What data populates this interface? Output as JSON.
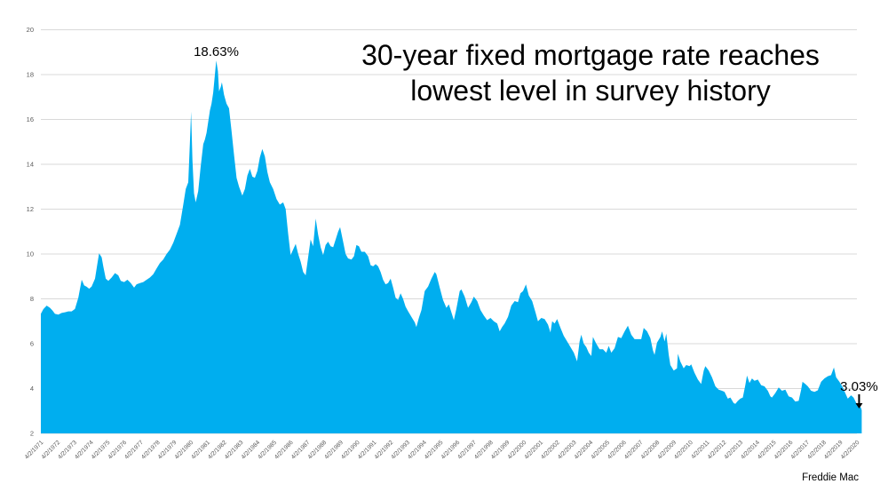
{
  "title": {
    "line1": "30-year fixed mortgage rate reaches",
    "line2": "lowest level in survey history"
  },
  "annotations": {
    "peak_label": "18.63%",
    "latest_label": "3.03%",
    "source_label": "Freddie Mac"
  },
  "colors": {
    "area": "#00AEEF",
    "gridline": "#D9D9D9",
    "axis_text": "#595959",
    "title_text": "#000000",
    "annotation_text": "#000000"
  },
  "chart_data": {
    "type": "area",
    "title": "30-year fixed mortgage rate reaches lowest level in survey history",
    "series_name": "30-year fixed mortgage rate (%)",
    "source": "Freddie Mac",
    "grid": "horizontal",
    "legend": "none",
    "ylim": [
      2,
      20
    ],
    "y_ticks": [
      2,
      4,
      6,
      8,
      10,
      12,
      14,
      16,
      18,
      20
    ],
    "xlim_years": [
      1971.25,
      2020.25
    ],
    "x_tick_labels": [
      "4/2/1971",
      "4/2/1972",
      "4/2/1973",
      "4/2/1974",
      "4/2/1975",
      "4/2/1976",
      "4/2/1977",
      "4/2/1978",
      "4/2/1979",
      "4/2/1980",
      "4/2/1981",
      "4/2/1982",
      "4/2/1983",
      "4/2/1984",
      "4/2/1985",
      "4/2/1986",
      "4/2/1987",
      "4/2/1988",
      "4/2/1989",
      "4/2/1990",
      "4/2/1991",
      "4/2/1992",
      "4/2/1993",
      "4/2/1994",
      "4/2/1995",
      "4/2/1996",
      "4/2/1997",
      "4/2/1998",
      "4/2/1999",
      "4/2/2000",
      "4/2/2001",
      "4/2/2002",
      "4/2/2003",
      "4/2/2004",
      "4/2/2005",
      "4/2/2006",
      "4/2/2007",
      "4/2/2008",
      "4/2/2009",
      "4/2/2010",
      "4/2/2011",
      "4/2/2012",
      "4/2/2013",
      "4/2/2014",
      "4/2/2015",
      "4/2/2016",
      "4/2/2017",
      "4/2/2018",
      "4/2/2019",
      "4/2/2020"
    ],
    "peak": {
      "year": 1981.78,
      "value": 18.63,
      "label": "18.63%"
    },
    "latest": {
      "year": 2020.54,
      "value": 3.03,
      "label": "3.03%"
    },
    "points": [
      [
        1971.25,
        7.33
      ],
      [
        1971.4,
        7.54
      ],
      [
        1971.6,
        7.7
      ],
      [
        1971.8,
        7.6
      ],
      [
        1971.95,
        7.48
      ],
      [
        1972.1,
        7.33
      ],
      [
        1972.3,
        7.3
      ],
      [
        1972.5,
        7.37
      ],
      [
        1972.7,
        7.4
      ],
      [
        1972.9,
        7.44
      ],
      [
        1973.1,
        7.44
      ],
      [
        1973.3,
        7.55
      ],
      [
        1973.5,
        8.05
      ],
      [
        1973.7,
        8.85
      ],
      [
        1973.85,
        8.6
      ],
      [
        1974.0,
        8.54
      ],
      [
        1974.15,
        8.45
      ],
      [
        1974.3,
        8.55
      ],
      [
        1974.5,
        8.9
      ],
      [
        1974.65,
        9.6
      ],
      [
        1974.75,
        10.03
      ],
      [
        1974.9,
        9.85
      ],
      [
        1975.0,
        9.45
      ],
      [
        1975.15,
        8.9
      ],
      [
        1975.3,
        8.8
      ],
      [
        1975.5,
        8.95
      ],
      [
        1975.7,
        9.15
      ],
      [
        1975.9,
        9.05
      ],
      [
        1976.05,
        8.8
      ],
      [
        1976.25,
        8.75
      ],
      [
        1976.45,
        8.85
      ],
      [
        1976.65,
        8.7
      ],
      [
        1976.85,
        8.5
      ],
      [
        1977.0,
        8.65
      ],
      [
        1977.2,
        8.7
      ],
      [
        1977.4,
        8.75
      ],
      [
        1977.6,
        8.85
      ],
      [
        1977.8,
        8.95
      ],
      [
        1978.0,
        9.1
      ],
      [
        1978.2,
        9.35
      ],
      [
        1978.4,
        9.6
      ],
      [
        1978.6,
        9.75
      ],
      [
        1978.8,
        10.0
      ],
      [
        1979.0,
        10.2
      ],
      [
        1979.2,
        10.5
      ],
      [
        1979.4,
        10.9
      ],
      [
        1979.6,
        11.3
      ],
      [
        1979.8,
        12.2
      ],
      [
        1979.95,
        12.9
      ],
      [
        1980.1,
        13.2
      ],
      [
        1980.2,
        15.0
      ],
      [
        1980.27,
        16.35
      ],
      [
        1980.35,
        14.2
      ],
      [
        1980.45,
        12.7
      ],
      [
        1980.55,
        12.3
      ],
      [
        1980.7,
        12.8
      ],
      [
        1980.85,
        13.9
      ],
      [
        1981.0,
        14.9
      ],
      [
        1981.1,
        15.1
      ],
      [
        1981.2,
        15.4
      ],
      [
        1981.3,
        15.9
      ],
      [
        1981.4,
        16.4
      ],
      [
        1981.5,
        16.7
      ],
      [
        1981.6,
        17.2
      ],
      [
        1981.7,
        18.0
      ],
      [
        1981.78,
        18.63
      ],
      [
        1981.88,
        18.15
      ],
      [
        1981.95,
        17.25
      ],
      [
        1982.05,
        17.45
      ],
      [
        1982.12,
        17.66
      ],
      [
        1982.25,
        17.1
      ],
      [
        1982.4,
        16.7
      ],
      [
        1982.55,
        16.5
      ],
      [
        1982.7,
        15.5
      ],
      [
        1982.85,
        14.4
      ],
      [
        1983.0,
        13.4
      ],
      [
        1983.15,
        13.0
      ],
      [
        1983.35,
        12.6
      ],
      [
        1983.5,
        12.9
      ],
      [
        1983.65,
        13.5
      ],
      [
        1983.8,
        13.8
      ],
      [
        1983.95,
        13.45
      ],
      [
        1984.1,
        13.4
      ],
      [
        1984.25,
        13.7
      ],
      [
        1984.4,
        14.3
      ],
      [
        1984.55,
        14.68
      ],
      [
        1984.7,
        14.35
      ],
      [
        1984.85,
        13.65
      ],
      [
        1985.0,
        13.2
      ],
      [
        1985.2,
        12.9
      ],
      [
        1985.4,
        12.45
      ],
      [
        1985.6,
        12.2
      ],
      [
        1985.8,
        12.3
      ],
      [
        1985.95,
        12.0
      ],
      [
        1986.1,
        10.9
      ],
      [
        1986.25,
        9.95
      ],
      [
        1986.4,
        10.2
      ],
      [
        1986.55,
        10.45
      ],
      [
        1986.7,
        10.0
      ],
      [
        1986.85,
        9.65
      ],
      [
        1987.0,
        9.2
      ],
      [
        1987.15,
        9.05
      ],
      [
        1987.3,
        9.85
      ],
      [
        1987.45,
        10.65
      ],
      [
        1987.6,
        10.35
      ],
      [
        1987.75,
        11.58
      ],
      [
        1987.9,
        10.85
      ],
      [
        1988.05,
        10.3
      ],
      [
        1988.2,
        9.95
      ],
      [
        1988.35,
        10.4
      ],
      [
        1988.5,
        10.55
      ],
      [
        1988.65,
        10.35
      ],
      [
        1988.8,
        10.3
      ],
      [
        1988.95,
        10.65
      ],
      [
        1989.1,
        11.0
      ],
      [
        1989.22,
        11.2
      ],
      [
        1989.4,
        10.55
      ],
      [
        1989.55,
        10.0
      ],
      [
        1989.7,
        9.8
      ],
      [
        1989.9,
        9.75
      ],
      [
        1990.05,
        9.9
      ],
      [
        1990.2,
        10.4
      ],
      [
        1990.35,
        10.35
      ],
      [
        1990.5,
        10.1
      ],
      [
        1990.7,
        10.1
      ],
      [
        1990.9,
        9.9
      ],
      [
        1991.05,
        9.5
      ],
      [
        1991.2,
        9.45
      ],
      [
        1991.35,
        9.55
      ],
      [
        1991.5,
        9.45
      ],
      [
        1991.65,
        9.2
      ],
      [
        1991.8,
        8.85
      ],
      [
        1991.95,
        8.65
      ],
      [
        1992.1,
        8.7
      ],
      [
        1992.25,
        8.9
      ],
      [
        1992.4,
        8.5
      ],
      [
        1992.55,
        8.05
      ],
      [
        1992.7,
        7.95
      ],
      [
        1992.85,
        8.25
      ],
      [
        1993.0,
        8.0
      ],
      [
        1993.15,
        7.65
      ],
      [
        1993.3,
        7.45
      ],
      [
        1993.5,
        7.2
      ],
      [
        1993.7,
        6.95
      ],
      [
        1993.8,
        6.74
      ],
      [
        1993.95,
        7.15
      ],
      [
        1994.1,
        7.5
      ],
      [
        1994.3,
        8.35
      ],
      [
        1994.5,
        8.55
      ],
      [
        1994.7,
        8.9
      ],
      [
        1994.9,
        9.2
      ],
      [
        1995.0,
        9.1
      ],
      [
        1995.2,
        8.5
      ],
      [
        1995.4,
        7.95
      ],
      [
        1995.6,
        7.6
      ],
      [
        1995.75,
        7.75
      ],
      [
        1995.9,
        7.4
      ],
      [
        1996.05,
        7.05
      ],
      [
        1996.2,
        7.55
      ],
      [
        1996.4,
        8.35
      ],
      [
        1996.5,
        8.42
      ],
      [
        1996.7,
        8.1
      ],
      [
        1996.9,
        7.6
      ],
      [
        1997.1,
        7.85
      ],
      [
        1997.25,
        8.1
      ],
      [
        1997.45,
        7.9
      ],
      [
        1997.65,
        7.5
      ],
      [
        1997.85,
        7.25
      ],
      [
        1998.05,
        7.05
      ],
      [
        1998.25,
        7.15
      ],
      [
        1998.45,
        7.0
      ],
      [
        1998.65,
        6.9
      ],
      [
        1998.8,
        6.55
      ],
      [
        1998.95,
        6.75
      ],
      [
        1999.1,
        6.9
      ],
      [
        1999.3,
        7.2
      ],
      [
        1999.5,
        7.7
      ],
      [
        1999.7,
        7.9
      ],
      [
        1999.9,
        7.85
      ],
      [
        2000.05,
        8.25
      ],
      [
        2000.2,
        8.35
      ],
      [
        2000.38,
        8.64
      ],
      [
        2000.55,
        8.15
      ],
      [
        2000.75,
        7.9
      ],
      [
        2000.95,
        7.4
      ],
      [
        2001.1,
        7.0
      ],
      [
        2001.3,
        7.15
      ],
      [
        2001.5,
        7.1
      ],
      [
        2001.7,
        6.85
      ],
      [
        2001.85,
        6.5
      ],
      [
        2001.95,
        7.0
      ],
      [
        2002.1,
        6.9
      ],
      [
        2002.25,
        7.1
      ],
      [
        2002.45,
        6.7
      ],
      [
        2002.65,
        6.35
      ],
      [
        2002.85,
        6.1
      ],
      [
        2003.05,
        5.85
      ],
      [
        2003.25,
        5.6
      ],
      [
        2003.45,
        5.21
      ],
      [
        2003.6,
        6.1
      ],
      [
        2003.7,
        6.4
      ],
      [
        2003.85,
        6.0
      ],
      [
        2004.0,
        5.85
      ],
      [
        2004.15,
        5.6
      ],
      [
        2004.3,
        5.45
      ],
      [
        2004.4,
        6.3
      ],
      [
        2004.6,
        6.0
      ],
      [
        2004.8,
        5.75
      ],
      [
        2005.0,
        5.75
      ],
      [
        2005.2,
        5.6
      ],
      [
        2005.35,
        5.9
      ],
      [
        2005.5,
        5.6
      ],
      [
        2005.7,
        5.8
      ],
      [
        2005.9,
        6.3
      ],
      [
        2006.1,
        6.25
      ],
      [
        2006.3,
        6.55
      ],
      [
        2006.5,
        6.8
      ],
      [
        2006.7,
        6.4
      ],
      [
        2006.9,
        6.2
      ],
      [
        2007.1,
        6.2
      ],
      [
        2007.3,
        6.2
      ],
      [
        2007.45,
        6.7
      ],
      [
        2007.65,
        6.55
      ],
      [
        2007.85,
        6.25
      ],
      [
        2008.0,
        5.7
      ],
      [
        2008.1,
        5.5
      ],
      [
        2008.25,
        6.05
      ],
      [
        2008.45,
        6.3
      ],
      [
        2008.55,
        6.55
      ],
      [
        2008.7,
        6.1
      ],
      [
        2008.8,
        6.45
      ],
      [
        2008.95,
        5.5
      ],
      [
        2009.05,
        5.05
      ],
      [
        2009.25,
        4.8
      ],
      [
        2009.45,
        4.9
      ],
      [
        2009.5,
        5.55
      ],
      [
        2009.65,
        5.2
      ],
      [
        2009.85,
        4.9
      ],
      [
        2010.0,
        5.05
      ],
      [
        2010.2,
        5.0
      ],
      [
        2010.3,
        5.08
      ],
      [
        2010.5,
        4.7
      ],
      [
        2010.7,
        4.4
      ],
      [
        2010.9,
        4.2
      ],
      [
        2011.05,
        4.8
      ],
      [
        2011.15,
        5.0
      ],
      [
        2011.35,
        4.8
      ],
      [
        2011.55,
        4.5
      ],
      [
        2011.75,
        4.1
      ],
      [
        2011.95,
        3.95
      ],
      [
        2012.15,
        3.9
      ],
      [
        2012.3,
        3.85
      ],
      [
        2012.5,
        3.55
      ],
      [
        2012.65,
        3.6
      ],
      [
        2012.85,
        3.35
      ],
      [
        2012.95,
        3.32
      ],
      [
        2013.1,
        3.45
      ],
      [
        2013.25,
        3.55
      ],
      [
        2013.4,
        3.6
      ],
      [
        2013.55,
        4.15
      ],
      [
        2013.65,
        4.58
      ],
      [
        2013.8,
        4.25
      ],
      [
        2013.95,
        4.45
      ],
      [
        2014.1,
        4.35
      ],
      [
        2014.3,
        4.4
      ],
      [
        2014.5,
        4.15
      ],
      [
        2014.7,
        4.1
      ],
      [
        2014.9,
        3.9
      ],
      [
        2015.05,
        3.65
      ],
      [
        2015.15,
        3.6
      ],
      [
        2015.35,
        3.8
      ],
      [
        2015.55,
        4.05
      ],
      [
        2015.75,
        3.9
      ],
      [
        2015.95,
        3.95
      ],
      [
        2016.15,
        3.65
      ],
      [
        2016.35,
        3.6
      ],
      [
        2016.55,
        3.42
      ],
      [
        2016.75,
        3.45
      ],
      [
        2016.9,
        3.95
      ],
      [
        2016.98,
        4.3
      ],
      [
        2017.15,
        4.2
      ],
      [
        2017.3,
        4.1
      ],
      [
        2017.5,
        3.9
      ],
      [
        2017.7,
        3.85
      ],
      [
        2017.9,
        3.92
      ],
      [
        2018.1,
        4.3
      ],
      [
        2018.3,
        4.45
      ],
      [
        2018.5,
        4.55
      ],
      [
        2018.7,
        4.6
      ],
      [
        2018.87,
        4.94
      ],
      [
        2019.0,
        4.5
      ],
      [
        2019.2,
        4.3
      ],
      [
        2019.4,
        4.05
      ],
      [
        2019.55,
        3.8
      ],
      [
        2019.7,
        3.55
      ],
      [
        2019.9,
        3.7
      ],
      [
        2020.05,
        3.6
      ],
      [
        2020.15,
        3.45
      ],
      [
        2020.25,
        3.3
      ],
      [
        2020.4,
        3.25
      ],
      [
        2020.5,
        3.13
      ],
      [
        2020.54,
        3.03
      ]
    ]
  }
}
